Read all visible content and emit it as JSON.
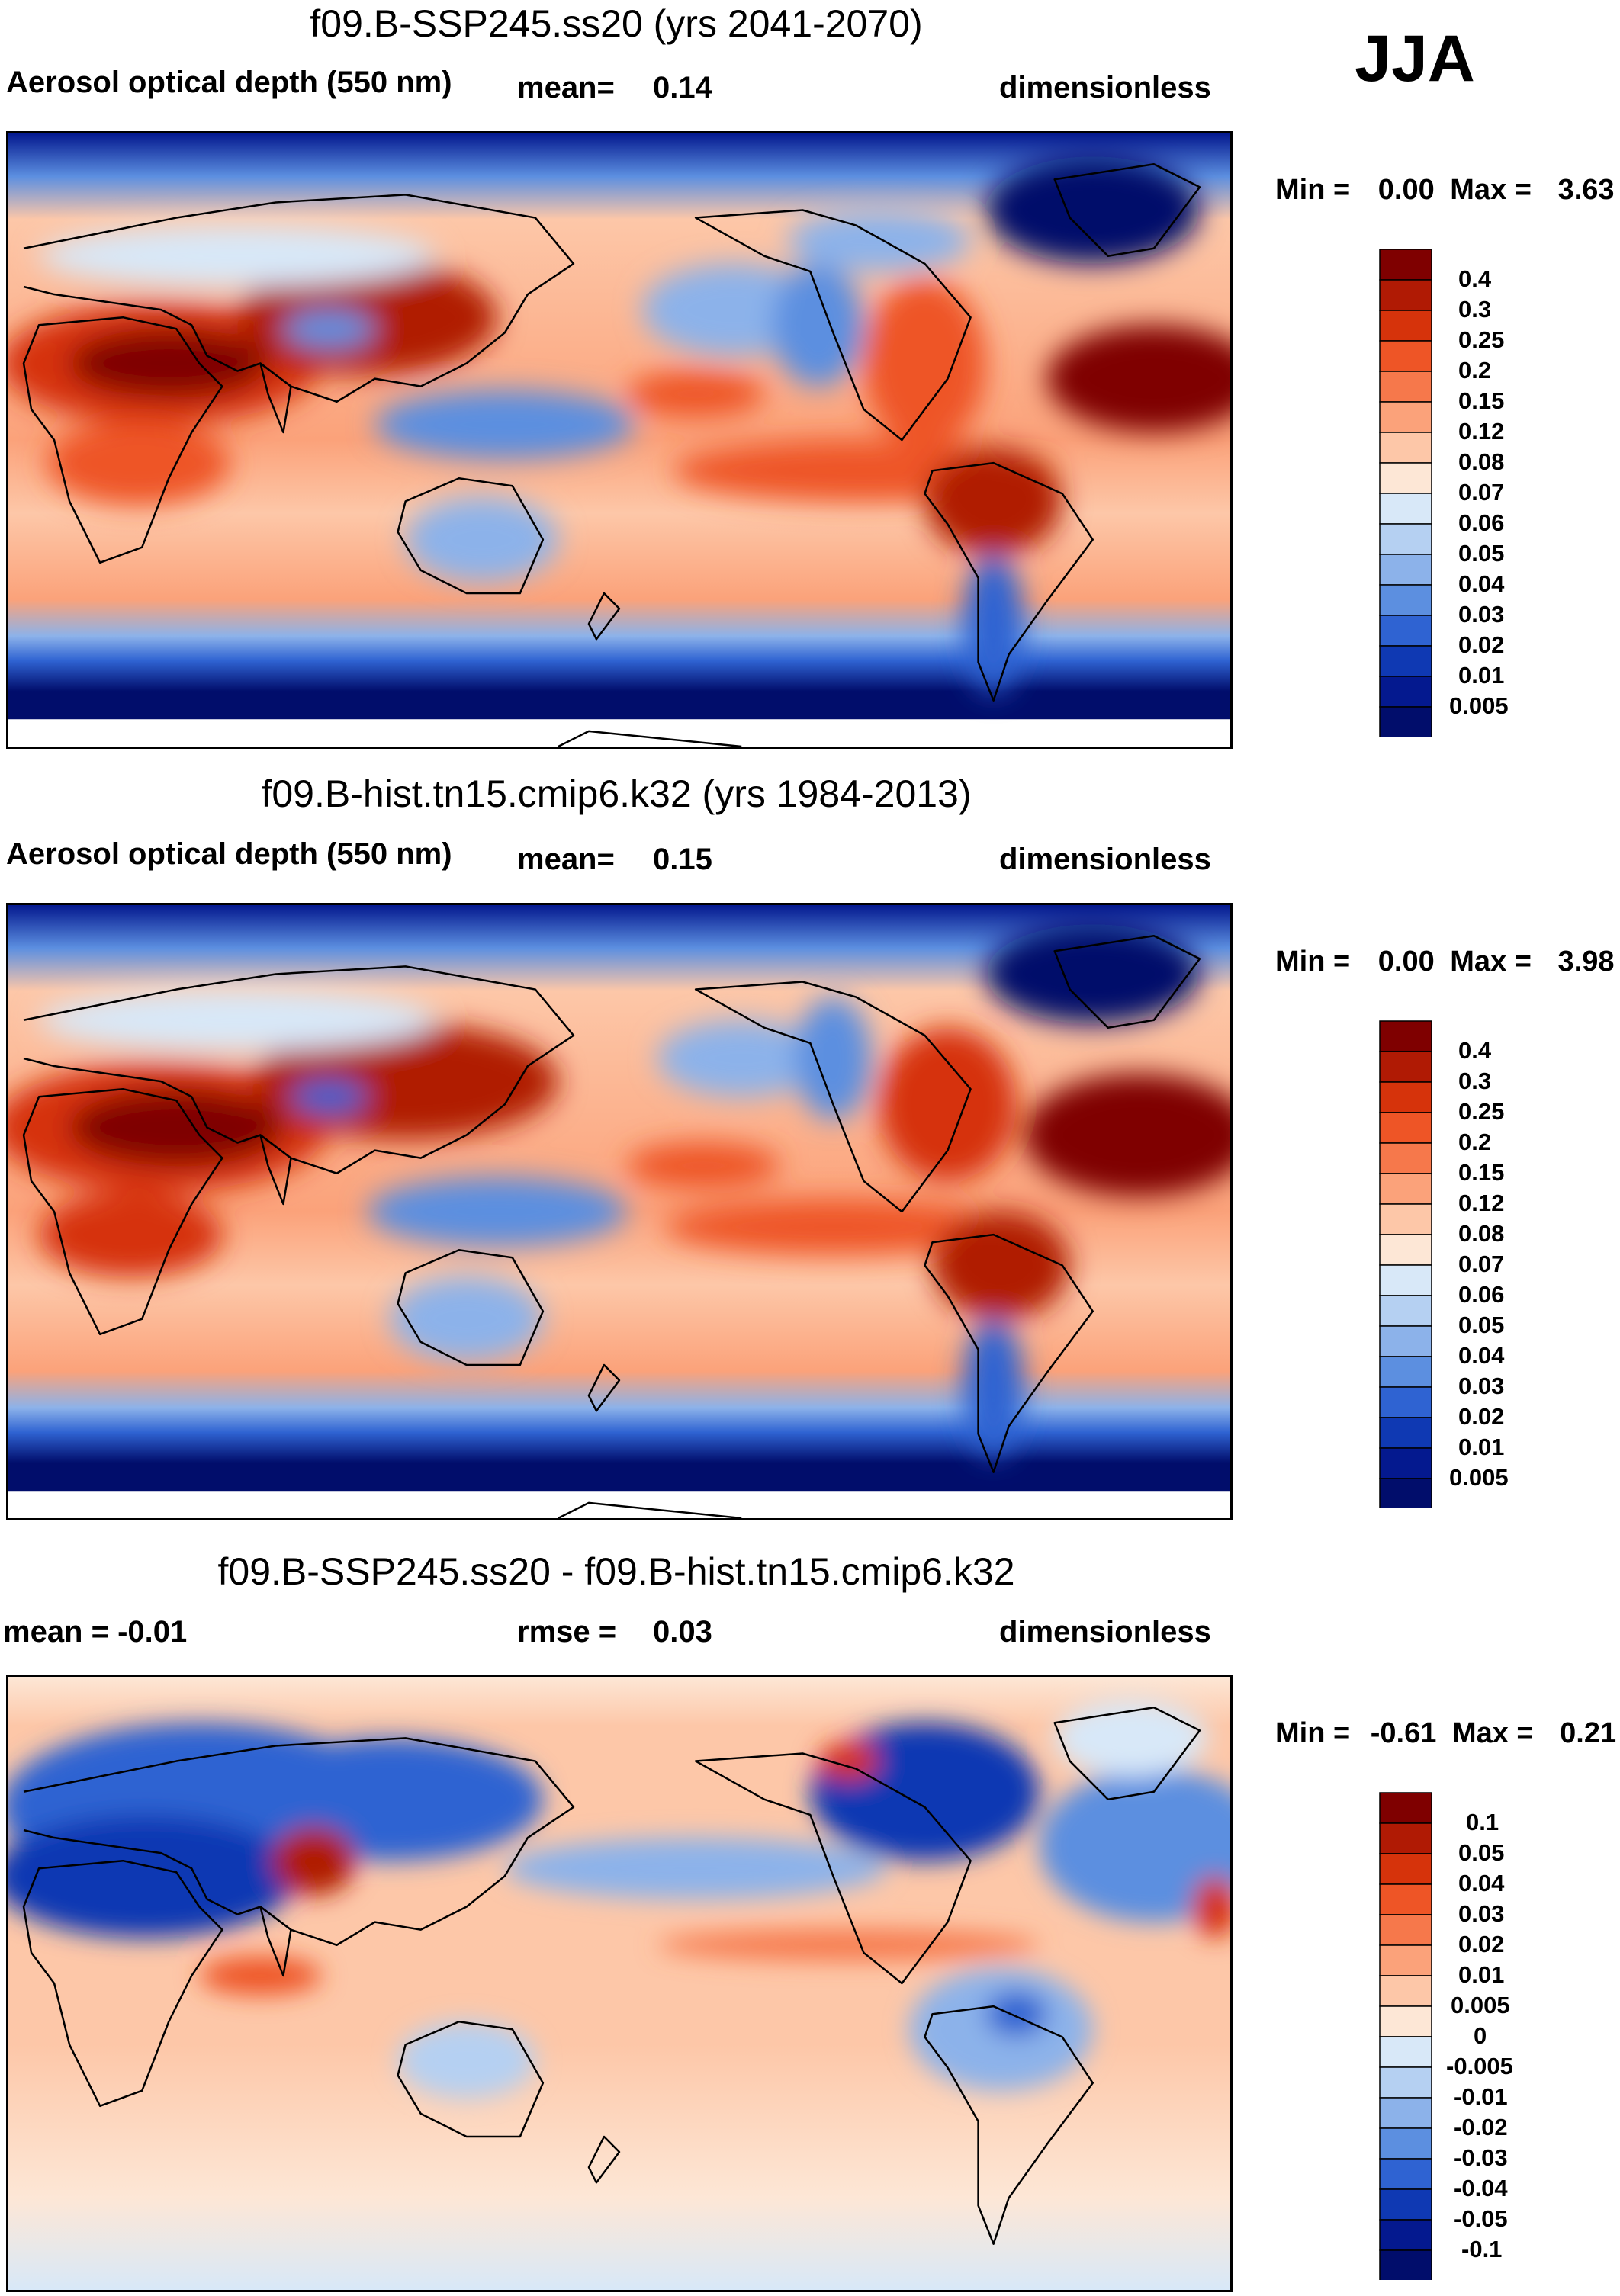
{
  "season": "JJA",
  "panels": [
    {
      "id": "top",
      "title": "f09.B-SSP245.ss20 (yrs 2041-2070)",
      "left_label": "Aerosol optical depth (550 nm)",
      "mid_label": "mean=",
      "mid_value": "0.14",
      "right_label": "dimensionless",
      "min_label": "Min =",
      "min_value": "0.00",
      "max_label": "Max =",
      "max_value": "3.63",
      "colorbar_ticks": [
        "0.4",
        "0.3",
        "0.25",
        "0.2",
        "0.15",
        "0.12",
        "0.08",
        "0.07",
        "0.06",
        "0.05",
        "0.04",
        "0.03",
        "0.02",
        "0.01",
        "0.005"
      ],
      "colorbar_colors": [
        "#7f0000",
        "#b01a04",
        "#d6330b",
        "#ee5526",
        "#f6784b",
        "#fba27a",
        "#fdc7a8",
        "#fde7d6",
        "#d8e8f8",
        "#b5d0f2",
        "#8cb2ea",
        "#5c8fe0",
        "#2f63d2",
        "#0f39b3",
        "#04198f",
        "#010d6b"
      ]
    },
    {
      "id": "middle",
      "title": "f09.B-hist.tn15.cmip6.k32 (yrs 1984-2013)",
      "left_label": "Aerosol optical depth (550 nm)",
      "mid_label": "mean=",
      "mid_value": "0.15",
      "right_label": "dimensionless",
      "min_label": "Min =",
      "min_value": "0.00",
      "max_label": "Max =",
      "max_value": "3.98",
      "colorbar_ticks": [
        "0.4",
        "0.3",
        "0.25",
        "0.2",
        "0.15",
        "0.12",
        "0.08",
        "0.07",
        "0.06",
        "0.05",
        "0.04",
        "0.03",
        "0.02",
        "0.01",
        "0.005"
      ],
      "colorbar_colors": [
        "#7f0000",
        "#b01a04",
        "#d6330b",
        "#ee5526",
        "#f6784b",
        "#fba27a",
        "#fdc7a8",
        "#fde7d6",
        "#d8e8f8",
        "#b5d0f2",
        "#8cb2ea",
        "#5c8fe0",
        "#2f63d2",
        "#0f39b3",
        "#04198f",
        "#010d6b"
      ]
    },
    {
      "id": "bottom",
      "title": "f09.B-SSP245.ss20 - f09.B-hist.tn15.cmip6.k32",
      "left_label": "mean =  -0.01",
      "mid_label": "rmse =",
      "mid_value": "0.03",
      "right_label": "dimensionless",
      "min_label": "Min =",
      "min_value": "-0.61",
      "max_label": "Max =",
      "max_value": "0.21",
      "colorbar_ticks": [
        "0.1",
        "0.05",
        "0.04",
        "0.03",
        "0.02",
        "0.01",
        "0.005",
        "0",
        "-0.005",
        "-0.01",
        "-0.02",
        "-0.03",
        "-0.04",
        "-0.05",
        "-0.1"
      ],
      "colorbar_colors": [
        "#7f0000",
        "#b01a04",
        "#d6330b",
        "#ee5526",
        "#f6784b",
        "#fba27a",
        "#fdc7a8",
        "#fde7d6",
        "#d8e8f8",
        "#b5d0f2",
        "#8cb2ea",
        "#5c8fe0",
        "#2f63d2",
        "#0f39b3",
        "#04198f",
        "#010d6b"
      ]
    }
  ]
}
